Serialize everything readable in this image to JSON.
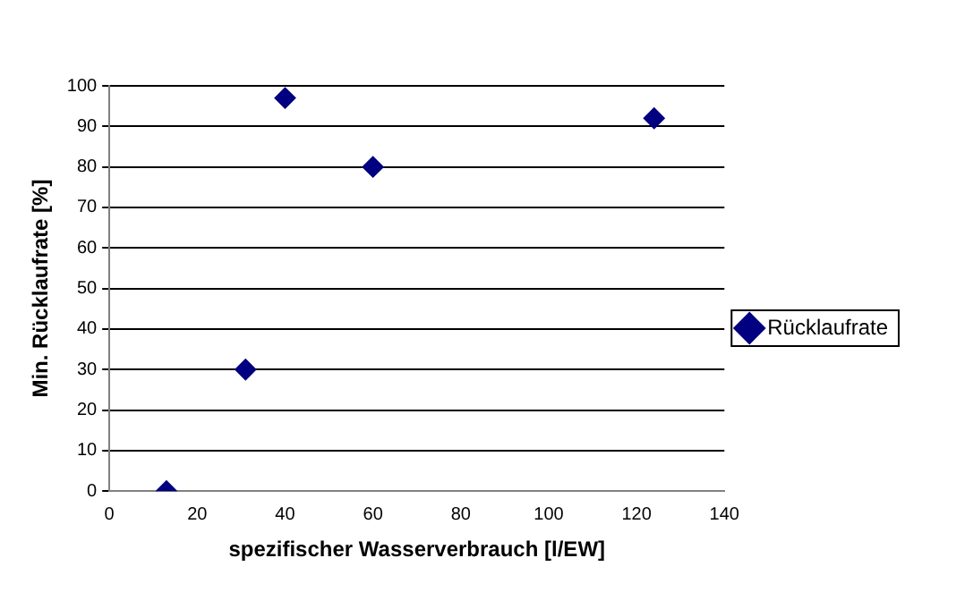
{
  "chart_data": {
    "type": "scatter",
    "xlabel": "spezifischer Wasserverbrauch [l/EW]",
    "ylabel": "Min. Rücklaufrate [%]",
    "x": [
      13,
      31,
      40,
      60,
      124
    ],
    "series": [
      {
        "name": "Rücklaufrate",
        "color": "#000080",
        "values": [
          0,
          30,
          97,
          80,
          92
        ]
      }
    ],
    "xlim": [
      0,
      140
    ],
    "xticks": [
      0,
      20,
      40,
      60,
      80,
      100,
      120,
      140
    ],
    "ylim": [
      0,
      100
    ],
    "yticks": [
      0,
      10,
      20,
      30,
      40,
      50,
      60,
      70,
      80,
      90,
      100
    ],
    "grid": "y",
    "legend": "right",
    "marker": "diamond"
  }
}
